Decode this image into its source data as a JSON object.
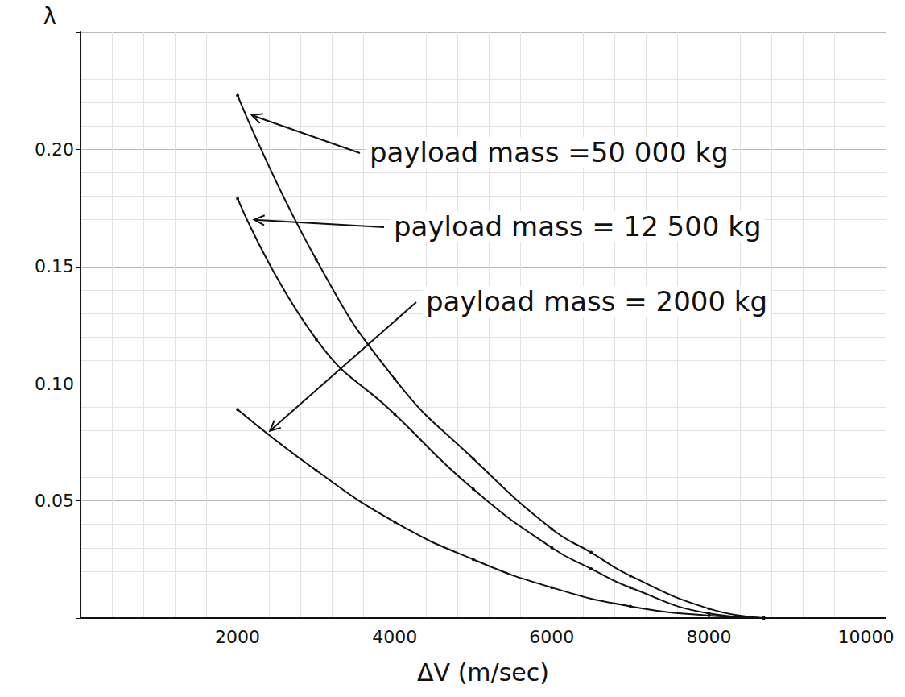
{
  "chart_data": {
    "type": "line",
    "x_label": "ΔV (m/sec)",
    "y_label": "λ",
    "xlim": [
      0,
      10250
    ],
    "xticks": [
      2000,
      4000,
      6000,
      8000,
      10000
    ],
    "ylim": [
      0,
      0.25
    ],
    "yticks": [
      0.05,
      {
        "value": 0.1,
        "label": "0.10"
      },
      0.15,
      {
        "value": 0.2,
        "label": "0.20"
      }
    ],
    "grid": true,
    "marker": "circle",
    "line_style": "solid",
    "series": [
      {
        "name": "payload mass =50 000 kg",
        "color": "#111111",
        "x": [
          2000,
          3000,
          4000,
          5000,
          6000,
          6500,
          7000,
          8000,
          8700
        ],
        "values": [
          0.223,
          0.153,
          0.102,
          0.068,
          0.038,
          0.028,
          0.018,
          0.004,
          0
        ]
      },
      {
        "name": "payload mass = 12 500 kg",
        "color": "#111111",
        "x": [
          2000,
          3000,
          4000,
          5000,
          6000,
          6500,
          7000,
          8000,
          8700
        ],
        "values": [
          0.179,
          0.119,
          0.087,
          0.055,
          0.03,
          0.021,
          0.013,
          0.002,
          0
        ]
      },
      {
        "name": "payload mass = 2000 kg",
        "color": "#111111",
        "x": [
          2000,
          3000,
          4000,
          5000,
          6000,
          7000,
          8000,
          8700
        ],
        "values": [
          0.089,
          0.063,
          0.041,
          0.025,
          0.013,
          0.005,
          0.001,
          0
        ]
      }
    ]
  }
}
